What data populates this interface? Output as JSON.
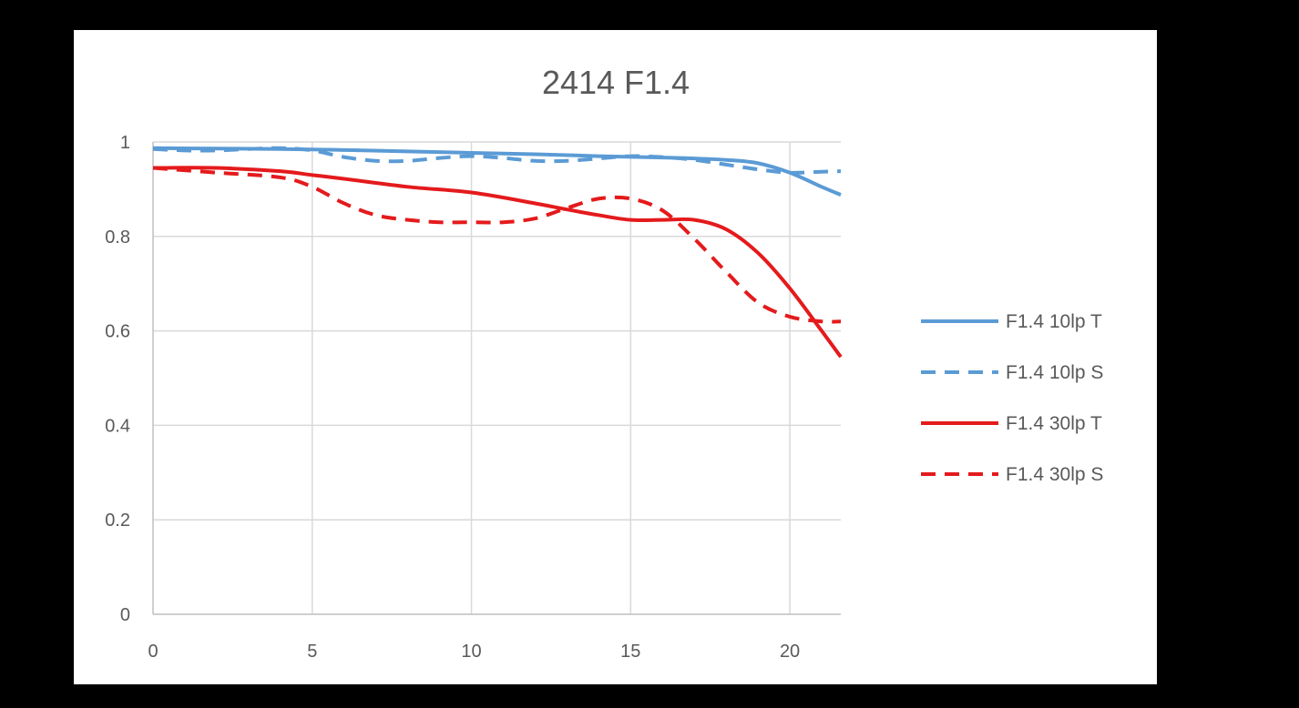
{
  "chart_data": {
    "type": "line",
    "title": "2414 F1.4",
    "xlabel": "",
    "ylabel": "",
    "xlim": [
      0,
      21.6
    ],
    "ylim": [
      0,
      1
    ],
    "x_ticks": [
      "0",
      "5",
      "10",
      "15",
      "20"
    ],
    "x_tick_values": [
      0,
      5,
      10,
      15,
      20
    ],
    "y_ticks": [
      "0",
      "0.2",
      "0.4",
      "0.6",
      "0.8",
      "1"
    ],
    "y_tick_values": [
      0,
      0.2,
      0.4,
      0.6,
      0.8,
      1
    ],
    "grid": true,
    "legend_position": "right",
    "series": [
      {
        "name": "F1.4 10lp T",
        "color": "#5b9bd5",
        "dash": "solid",
        "x": [
          0,
          2,
          4,
          6,
          8,
          10,
          12,
          14,
          16,
          17,
          18,
          19,
          20,
          21,
          21.6
        ],
        "y": [
          0.987,
          0.986,
          0.985,
          0.983,
          0.98,
          0.977,
          0.974,
          0.97,
          0.967,
          0.965,
          0.962,
          0.955,
          0.935,
          0.905,
          0.888
        ]
      },
      {
        "name": "F1.4 10lp S",
        "color": "#5b9bd5",
        "dash": "dashed",
        "x": [
          0,
          1,
          2,
          3,
          4,
          5,
          6,
          7,
          8,
          9,
          10,
          11,
          12,
          13,
          14,
          15,
          16,
          17,
          18,
          19,
          20,
          21,
          21.6
        ],
        "y": [
          0.985,
          0.982,
          0.982,
          0.985,
          0.987,
          0.982,
          0.968,
          0.96,
          0.96,
          0.966,
          0.97,
          0.966,
          0.96,
          0.96,
          0.965,
          0.97,
          0.968,
          0.962,
          0.952,
          0.942,
          0.935,
          0.937,
          0.938
        ]
      },
      {
        "name": "F1.4 30lp T",
        "color": "#e41a1c",
        "dash": "solid",
        "x": [
          0,
          2,
          4,
          5,
          6,
          8,
          10,
          12,
          13,
          14,
          15,
          16,
          17,
          18,
          19,
          20,
          21,
          21.6
        ],
        "y": [
          0.945,
          0.945,
          0.938,
          0.93,
          0.922,
          0.905,
          0.893,
          0.87,
          0.857,
          0.845,
          0.835,
          0.835,
          0.835,
          0.815,
          0.765,
          0.69,
          0.6,
          0.545
        ]
      },
      {
        "name": "F1.4 30lp S",
        "color": "#e41a1c",
        "dash": "dashed",
        "x": [
          0,
          2,
          4,
          5,
          6,
          7,
          8,
          9,
          10,
          11,
          12,
          13,
          14,
          15,
          16,
          17,
          18,
          19,
          20,
          21,
          21.6
        ],
        "y": [
          0.945,
          0.935,
          0.925,
          0.905,
          0.87,
          0.845,
          0.835,
          0.83,
          0.83,
          0.83,
          0.838,
          0.86,
          0.88,
          0.88,
          0.855,
          0.795,
          0.725,
          0.66,
          0.63,
          0.62,
          0.62
        ]
      }
    ]
  }
}
